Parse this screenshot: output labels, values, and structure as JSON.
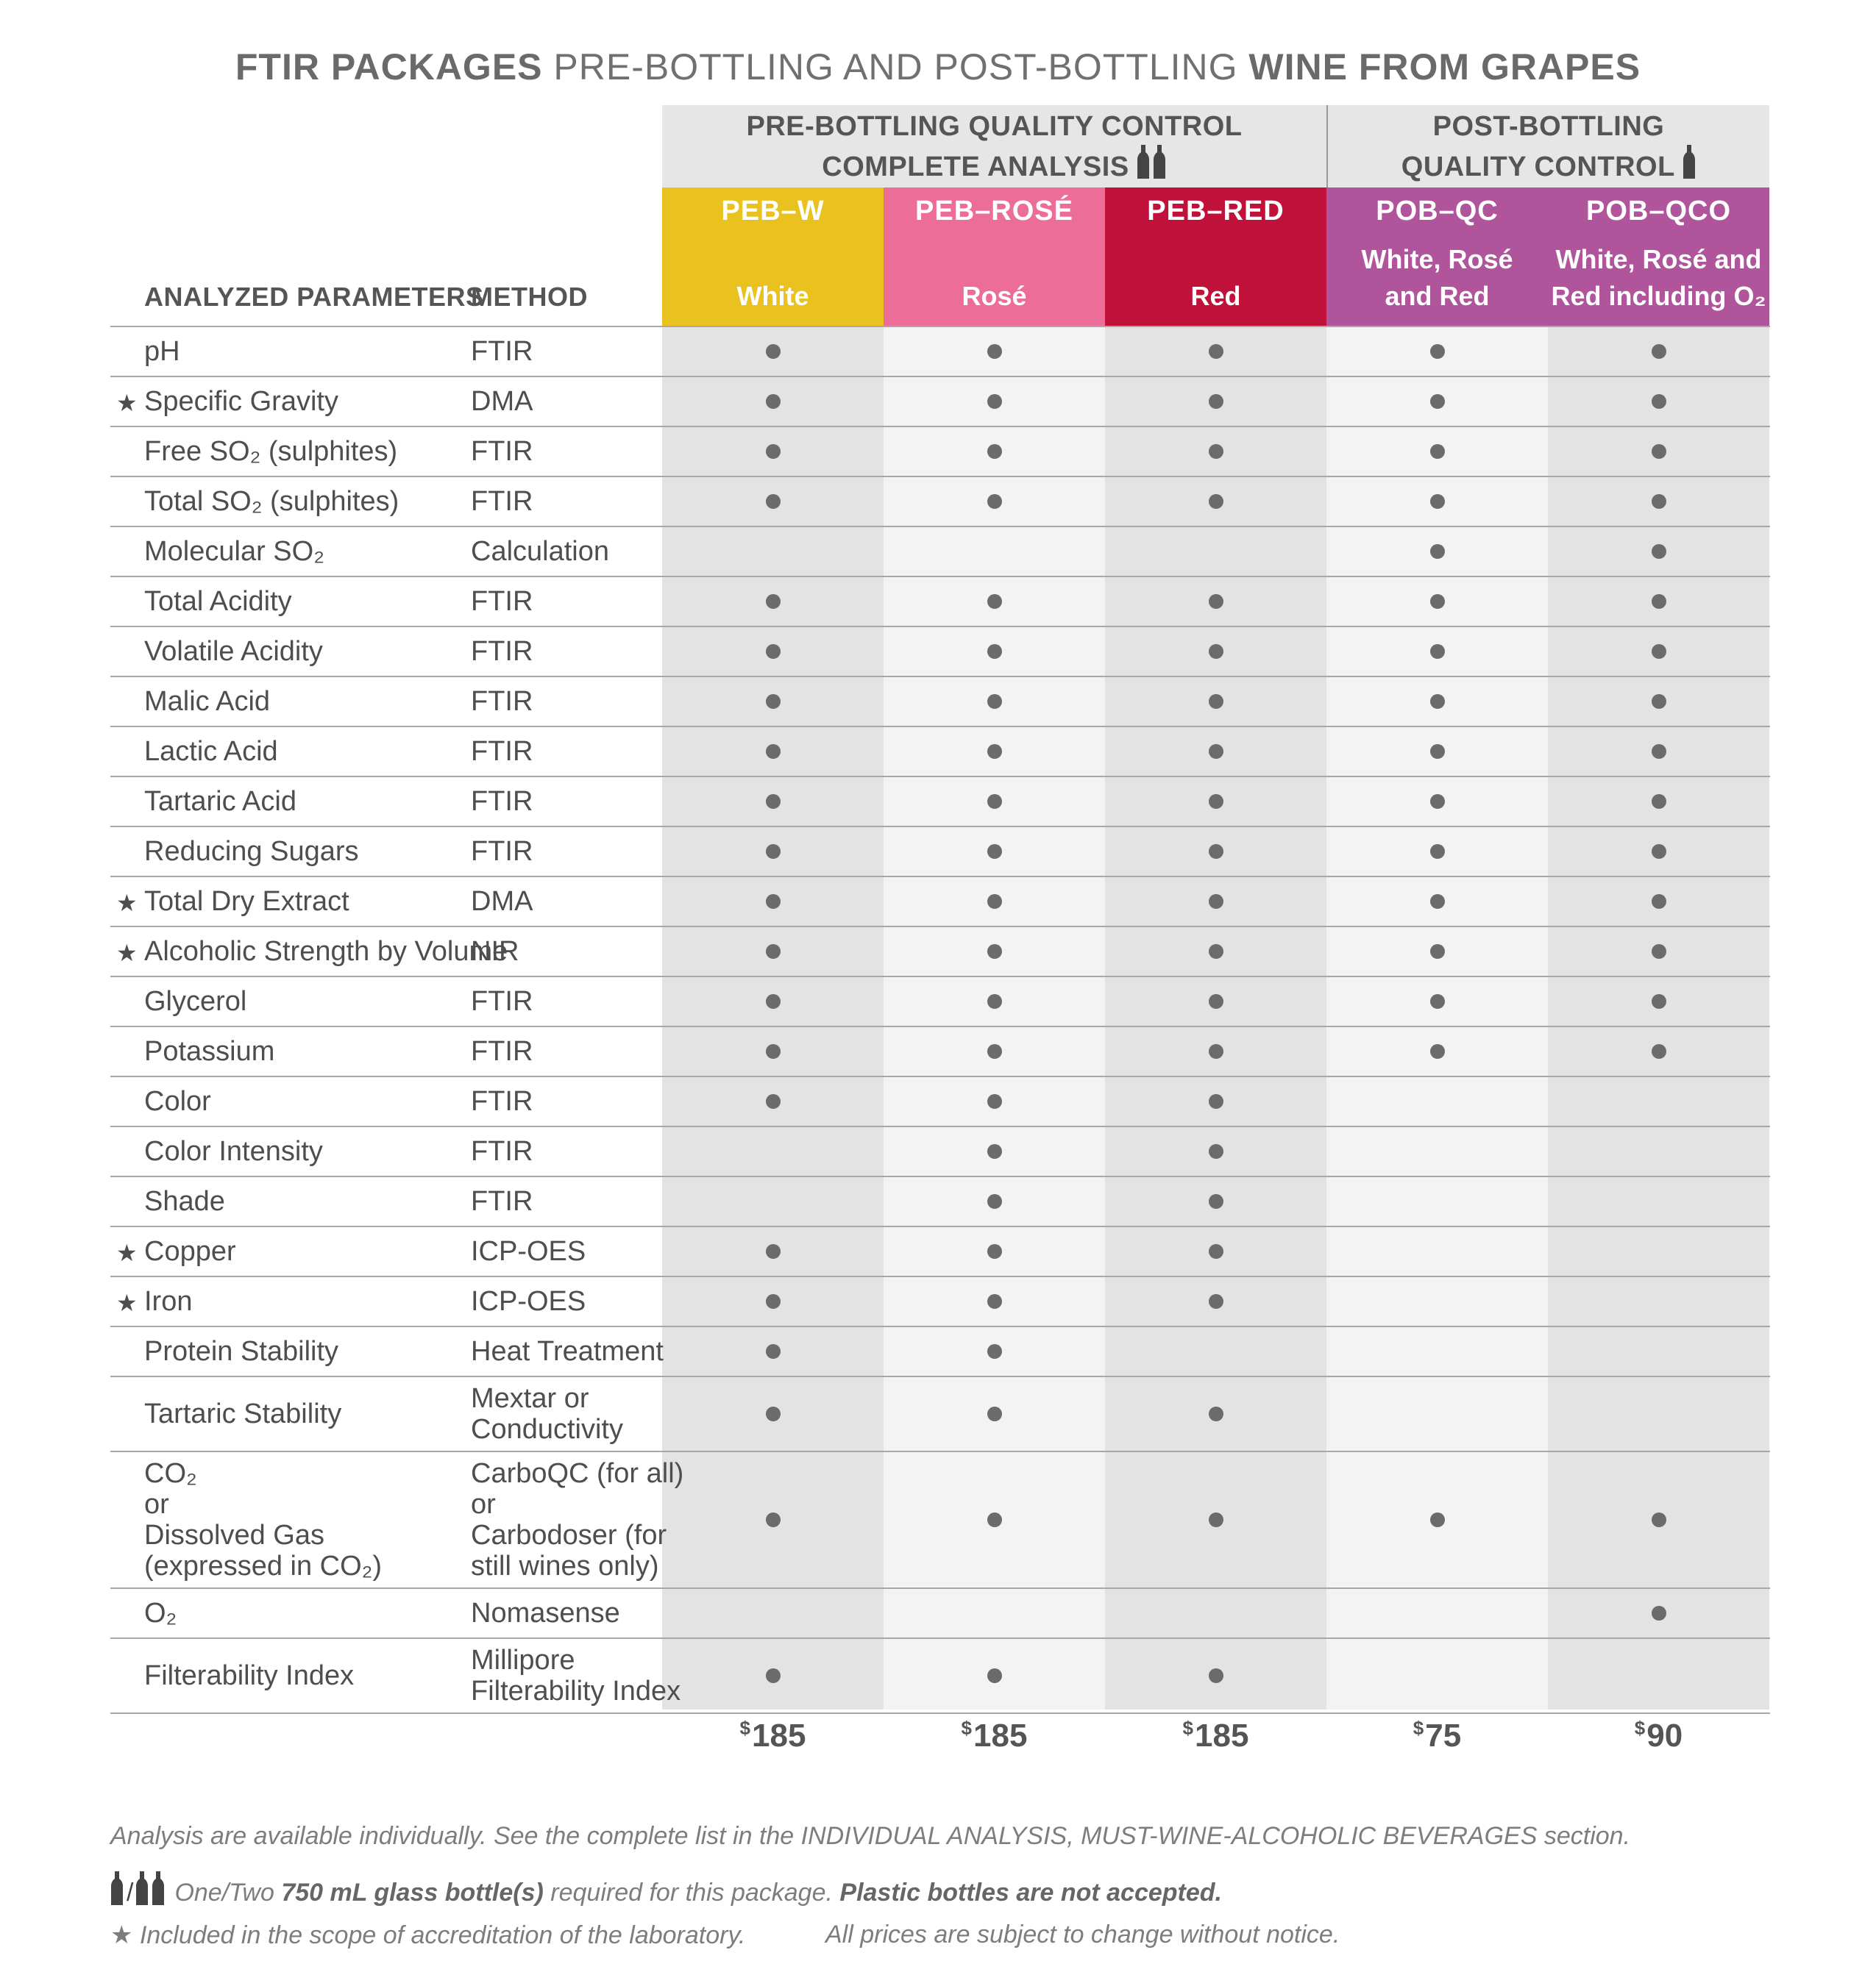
{
  "title": {
    "part1": "FTIR PACKAGES",
    "part2": " PRE-BOTTLING AND POST-BOTTLING ",
    "part3": "WINE FROM GRAPES"
  },
  "groups": [
    {
      "line1": "PRE-BOTTLING QUALITY CONTROL",
      "line2": "COMPLETE ANALYSIS",
      "icon": "two-bottles-icon"
    },
    {
      "line1": "POST-BOTTLING",
      "line2": "QUALITY CONTROL",
      "icon": "one-bottle-icon"
    }
  ],
  "headers": {
    "parameters": "ANALYZED PARAMETERS",
    "method": "METHOD"
  },
  "packages": [
    {
      "code": "PEB–W",
      "desc1": "White",
      "desc2": "",
      "color": "#e9c21f",
      "price_symbol": "$",
      "price": "185"
    },
    {
      "code": "PEB–ROSÉ",
      "desc1": "Rosé",
      "desc2": "",
      "color": "#ec6e98",
      "price_symbol": "$",
      "price": "185"
    },
    {
      "code": "PEB–RED",
      "desc1": "Red",
      "desc2": "",
      "color": "#c0113a",
      "price_symbol": "$",
      "price": "185"
    },
    {
      "code": "POB–QC",
      "desc1": "White, Rosé",
      "desc2": "and Red",
      "color": "#b0559c",
      "price_symbol": "$",
      "price": "75"
    },
    {
      "code": "POB–QCO",
      "desc1": "White, Rosé and",
      "desc2": "Red including O₂",
      "color": "#b0559c",
      "price_symbol": "$",
      "price": "90"
    }
  ],
  "column_shades": [
    "#e3e3e3",
    "#f3f3f3",
    "#e3e3e3",
    "#f3f3f3",
    "#e3e3e3"
  ],
  "rows": [
    {
      "param": "pH",
      "method": "FTIR",
      "star": false,
      "marks": [
        1,
        1,
        1,
        1,
        1
      ]
    },
    {
      "param": "Specific Gravity",
      "method": "DMA",
      "star": true,
      "marks": [
        1,
        1,
        1,
        1,
        1
      ]
    },
    {
      "param": "Free SO₂ (sulphites)",
      "method": "FTIR",
      "star": false,
      "marks": [
        1,
        1,
        1,
        1,
        1
      ]
    },
    {
      "param": "Total SO₂ (sulphites)",
      "method": "FTIR",
      "star": false,
      "marks": [
        1,
        1,
        1,
        1,
        1
      ]
    },
    {
      "param": "Molecular SO₂",
      "method": "Calculation",
      "star": false,
      "marks": [
        0,
        0,
        0,
        1,
        1
      ]
    },
    {
      "param": "Total Acidity",
      "method": "FTIR",
      "star": false,
      "marks": [
        1,
        1,
        1,
        1,
        1
      ]
    },
    {
      "param": "Volatile Acidity",
      "method": "FTIR",
      "star": false,
      "marks": [
        1,
        1,
        1,
        1,
        1
      ]
    },
    {
      "param": "Malic Acid",
      "method": "FTIR",
      "star": false,
      "marks": [
        1,
        1,
        1,
        1,
        1
      ]
    },
    {
      "param": "Lactic Acid",
      "method": "FTIR",
      "star": false,
      "marks": [
        1,
        1,
        1,
        1,
        1
      ]
    },
    {
      "param": "Tartaric Acid",
      "method": "FTIR",
      "star": false,
      "marks": [
        1,
        1,
        1,
        1,
        1
      ]
    },
    {
      "param": "Reducing Sugars",
      "method": "FTIR",
      "star": false,
      "marks": [
        1,
        1,
        1,
        1,
        1
      ]
    },
    {
      "param": "Total Dry Extract",
      "method": "DMA",
      "star": true,
      "marks": [
        1,
        1,
        1,
        1,
        1
      ]
    },
    {
      "param": "Alcoholic Strength by Volume",
      "method": "NIR",
      "star": true,
      "marks": [
        1,
        1,
        1,
        1,
        1
      ]
    },
    {
      "param": "Glycerol",
      "method": "FTIR",
      "star": false,
      "marks": [
        1,
        1,
        1,
        1,
        1
      ]
    },
    {
      "param": "Potassium",
      "method": "FTIR",
      "star": false,
      "marks": [
        1,
        1,
        1,
        1,
        1
      ]
    },
    {
      "param": "Color",
      "method": "FTIR",
      "star": false,
      "marks": [
        1,
        1,
        1,
        0,
        0
      ]
    },
    {
      "param": "Color Intensity",
      "method": "FTIR",
      "star": false,
      "marks": [
        0,
        1,
        1,
        0,
        0
      ]
    },
    {
      "param": "Shade",
      "method": "FTIR",
      "star": false,
      "marks": [
        0,
        1,
        1,
        0,
        0
      ]
    },
    {
      "param": "Copper",
      "method": "ICP-OES",
      "star": true,
      "marks": [
        1,
        1,
        1,
        0,
        0
      ]
    },
    {
      "param": "Iron",
      "method": "ICP-OES",
      "star": true,
      "marks": [
        1,
        1,
        1,
        0,
        0
      ]
    },
    {
      "param": "Protein Stability",
      "method": "Heat Treatment",
      "star": false,
      "marks": [
        1,
        1,
        0,
        0,
        0
      ]
    },
    {
      "param": "Tartaric Stability",
      "method": "Mextar or\nConductivity",
      "star": false,
      "marks": [
        1,
        1,
        1,
        0,
        0
      ]
    },
    {
      "param": "CO₂\nor\nDissolved Gas\n(expressed in CO₂)",
      "method": "CarboQC (for all)\nor\nCarbodoser (for\nstill wines only)",
      "star": false,
      "marks": [
        1,
        1,
        1,
        1,
        1
      ]
    },
    {
      "param": "O₂",
      "method": "Nomasense",
      "star": false,
      "marks": [
        0,
        0,
        0,
        0,
        1
      ]
    },
    {
      "param": "Filterability Index",
      "method": "Millipore\nFilterability Index",
      "star": false,
      "marks": [
        1,
        1,
        1,
        0,
        0
      ]
    }
  ],
  "star_symbol": "★",
  "footnotes": {
    "line1": "Analysis are available individually. See the complete list in the INDIVIDUAL ANALYSIS, MUST-WINE-ALCOHOLIC BEVERAGES section.",
    "line2_slash": "/",
    "line2_a": "One/Two ",
    "line2_b": "750 mL glass bottle(s)",
    "line2_c": " required for this package. ",
    "line2_d": "Plastic bottles are not accepted.",
    "line3_a": "Included in the scope of accreditation of the laboratory.",
    "line3_b": "All prices are subject to change without notice."
  }
}
